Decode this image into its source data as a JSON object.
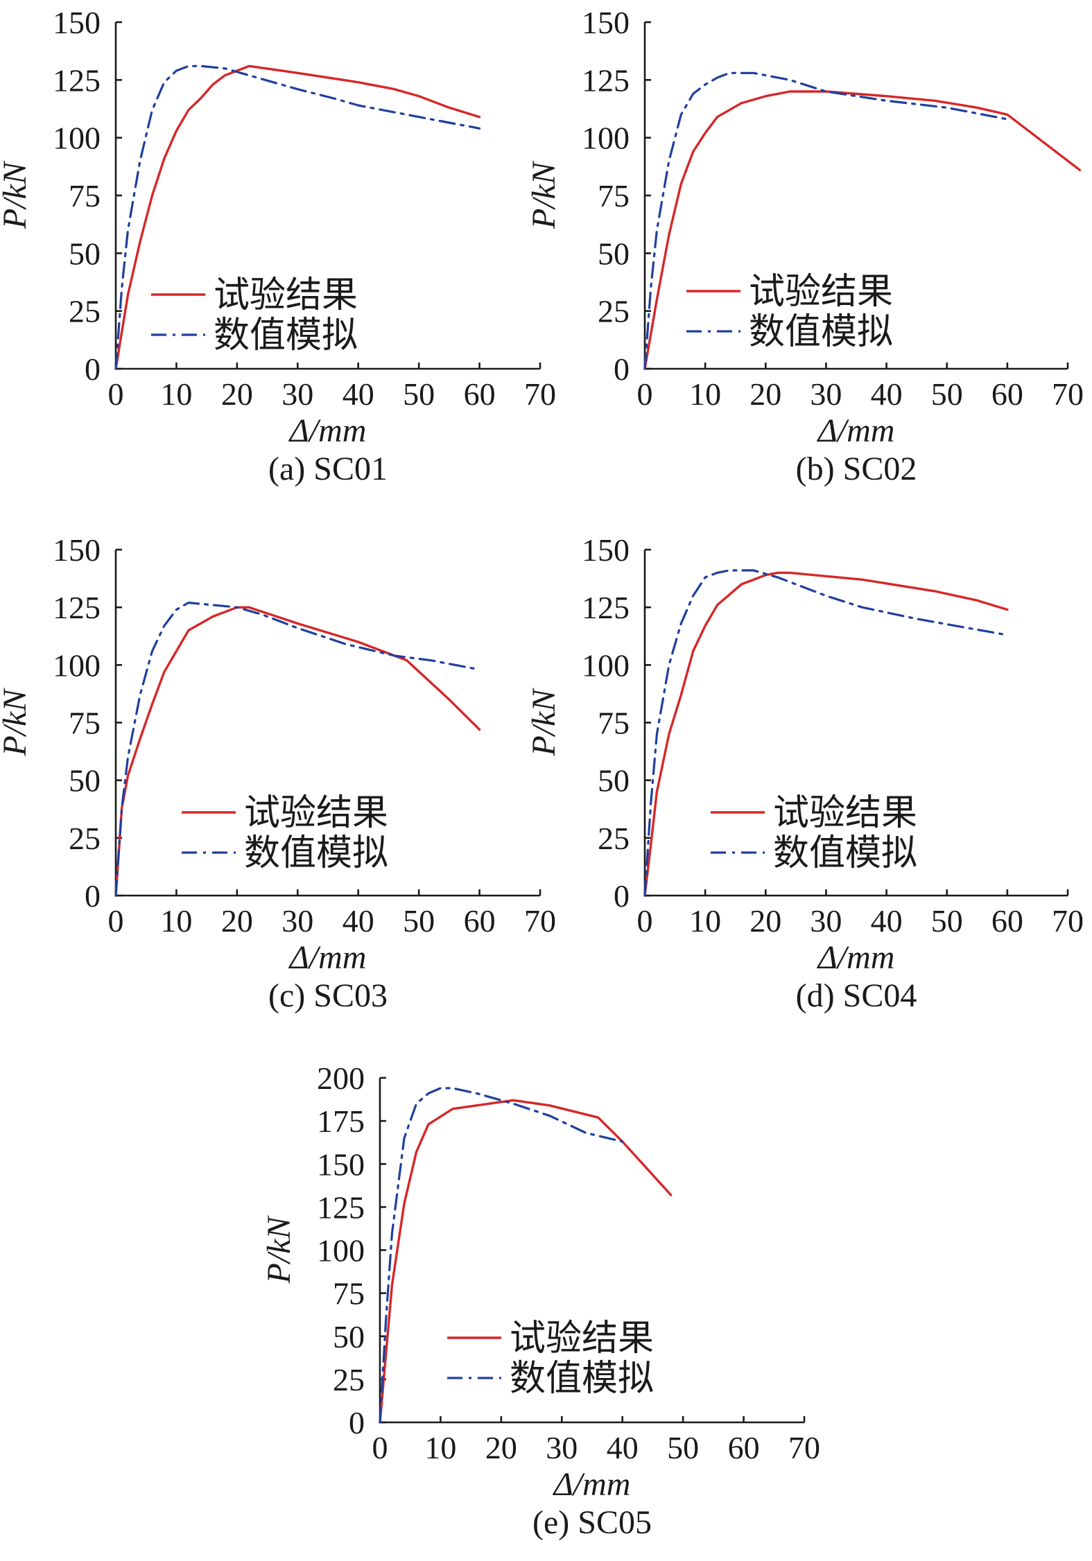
{
  "chart_data": [
    {
      "type": "line",
      "caption": "(a) SC01",
      "xlabel": "Δ/mm",
      "ylabel": "P/kN",
      "xlim": [
        0,
        70
      ],
      "ylim": [
        0,
        150
      ],
      "xticks": [
        0,
        10,
        20,
        30,
        40,
        50,
        60,
        70
      ],
      "yticks": [
        0,
        25,
        50,
        75,
        100,
        125,
        150
      ],
      "legend_position": "center-left",
      "series": [
        {
          "name": "试验结果",
          "color": "#d62728",
          "style": "solid",
          "x": [
            0,
            2,
            4,
            6,
            8,
            10,
            12,
            14,
            16,
            18,
            20,
            22,
            30,
            40,
            46,
            50,
            55,
            60
          ],
          "y": [
            0,
            32,
            55,
            75,
            91,
            103,
            112,
            117,
            123,
            127,
            129,
            131,
            128,
            124,
            121,
            118,
            113,
            109
          ]
        },
        {
          "name": "数值模拟",
          "color": "#1f3f9f",
          "style": "dashdot",
          "x": [
            0,
            1,
            2,
            4,
            6,
            8,
            10,
            12,
            14,
            18,
            22,
            30,
            36,
            40,
            50,
            60
          ],
          "y": [
            0,
            35,
            60,
            90,
            112,
            124,
            129,
            131,
            131,
            130,
            127,
            121,
            117,
            114,
            109,
            104
          ]
        }
      ]
    },
    {
      "type": "line",
      "caption": "(b) SC02",
      "xlabel": "Δ/mm",
      "ylabel": "P/kN",
      "xlim": [
        0,
        70
      ],
      "ylim": [
        0,
        150
      ],
      "xticks": [
        0,
        10,
        20,
        30,
        40,
        50,
        60,
        70
      ],
      "yticks": [
        0,
        25,
        50,
        75,
        100,
        125,
        150
      ],
      "legend_position": "center-left",
      "series": [
        {
          "name": "试验结果",
          "color": "#d62728",
          "style": "solid",
          "x": [
            0,
            2,
            4,
            6,
            8,
            10,
            12,
            16,
            20,
            24,
            30,
            40,
            48,
            55,
            60,
            72
          ],
          "y": [
            0,
            30,
            58,
            80,
            94,
            102,
            109,
            115,
            118,
            120,
            120,
            118,
            116,
            113,
            110,
            86
          ]
        },
        {
          "name": "数值模拟",
          "color": "#1f3f9f",
          "style": "dashdot",
          "x": [
            0,
            1,
            2,
            4,
            6,
            8,
            10,
            12,
            14,
            18,
            24,
            30,
            40,
            50,
            60
          ],
          "y": [
            0,
            35,
            60,
            90,
            110,
            119,
            123,
            126,
            128,
            128,
            125,
            120,
            116,
            113,
            108
          ]
        }
      ]
    },
    {
      "type": "line",
      "caption": "(c) SC03",
      "xlabel": "Δ/mm",
      "ylabel": "P/kN",
      "xlim": [
        0,
        70
      ],
      "ylim": [
        0,
        150
      ],
      "xticks": [
        0,
        10,
        20,
        30,
        40,
        50,
        60,
        70
      ],
      "yticks": [
        0,
        25,
        50,
        75,
        100,
        125,
        150
      ],
      "legend_position": "center-left",
      "series": [
        {
          "name": "试验结果",
          "color": "#d62728",
          "style": "solid",
          "x": [
            0,
            1,
            2,
            4,
            6,
            8,
            10,
            12,
            16,
            20,
            22,
            30,
            40,
            48,
            55,
            60
          ],
          "y": [
            0,
            38,
            52,
            68,
            83,
            97,
            106,
            115,
            121,
            125,
            125,
            118,
            110,
            102,
            85,
            72
          ]
        },
        {
          "name": "数值模拟",
          "color": "#1f3f9f",
          "style": "dashdot",
          "x": [
            0,
            1,
            2,
            4,
            6,
            8,
            10,
            12,
            16,
            20,
            24,
            30,
            38,
            46,
            52,
            60
          ],
          "y": [
            0,
            38,
            60,
            87,
            106,
            117,
            124,
            127,
            126,
            125,
            122,
            116,
            109,
            104,
            102,
            98
          ]
        }
      ]
    },
    {
      "type": "line",
      "caption": "(d) SC04",
      "xlabel": "Δ/mm",
      "ylabel": "P/kN",
      "xlim": [
        0,
        70
      ],
      "ylim": [
        0,
        150
      ],
      "xticks": [
        0,
        10,
        20,
        30,
        40,
        50,
        60,
        70
      ],
      "yticks": [
        0,
        25,
        50,
        75,
        100,
        125,
        150
      ],
      "legend_position": "center-left",
      "series": [
        {
          "name": "试验结果",
          "color": "#d62728",
          "style": "solid",
          "x": [
            0,
            1,
            2,
            4,
            6,
            8,
            10,
            12,
            16,
            20,
            22,
            24,
            36,
            48,
            55,
            60
          ],
          "y": [
            0,
            22,
            45,
            70,
            87,
            106,
            117,
            126,
            135,
            139,
            140,
            140,
            137,
            132,
            128,
            124
          ]
        },
        {
          "name": "数值模拟",
          "color": "#1f3f9f",
          "style": "dashdot",
          "x": [
            0,
            1,
            2,
            4,
            6,
            8,
            10,
            12,
            14,
            18,
            22,
            26,
            30,
            36,
            45,
            60
          ],
          "y": [
            0,
            40,
            70,
            100,
            118,
            130,
            138,
            140,
            141,
            141,
            138,
            134,
            130,
            125,
            120,
            113
          ]
        }
      ]
    },
    {
      "type": "line",
      "caption": "(e) SC05",
      "xlabel": "Δ/mm",
      "ylabel": "P/kN",
      "xlim": [
        0,
        70
      ],
      "ylim": [
        0,
        200
      ],
      "xticks": [
        0,
        10,
        20,
        30,
        40,
        50,
        60,
        70
      ],
      "yticks": [
        0,
        25,
        50,
        75,
        100,
        125,
        150,
        175,
        200
      ],
      "legend_position": "center-left",
      "series": [
        {
          "name": "试验结果",
          "color": "#d62728",
          "style": "solid",
          "x": [
            0,
            1,
            2,
            4,
            6,
            8,
            12,
            22,
            28,
            36,
            40,
            48
          ],
          "y": [
            0,
            40,
            80,
            127,
            157,
            173,
            182,
            187,
            184,
            177,
            163,
            132
          ]
        },
        {
          "name": "数值模拟",
          "color": "#1f3f9f",
          "style": "dashdot",
          "x": [
            0,
            1,
            2,
            4,
            6,
            8,
            10,
            12,
            16,
            22,
            28,
            34,
            40
          ],
          "y": [
            0,
            60,
            110,
            165,
            185,
            191,
            194,
            194,
            191,
            185,
            178,
            168,
            163
          ]
        }
      ]
    }
  ]
}
